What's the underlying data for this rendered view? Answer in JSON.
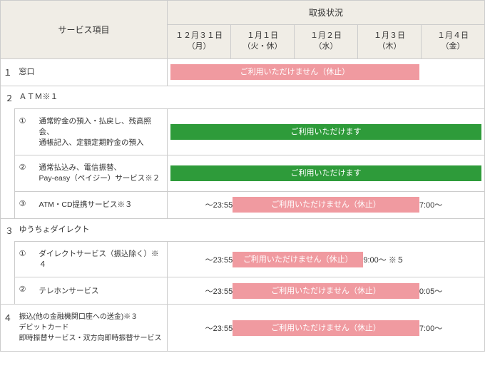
{
  "colors": {
    "header_bg": "#f0ede6",
    "border": "#cccccc",
    "green": "#2e9b3a",
    "pink": "#f09aa0",
    "text": "#333333"
  },
  "header": {
    "service_col": "サービス項目",
    "status_col": "取扱状況",
    "dates": [
      "１２月３１日\n（月）",
      "１月１日\n（火・休）",
      "１月２日\n（水）",
      "１月３日\n（木）",
      "１月４日\n（金）"
    ]
  },
  "labels": {
    "unavailable": "ご利用いただけません（休止）",
    "available": "ご利用いただけます"
  },
  "rows": {
    "r1": {
      "num": "１",
      "label": "窓口",
      "bar": {
        "color": "pink",
        "textKey": "unavailable",
        "left_pct": 0,
        "right_pct": 20
      }
    },
    "r2": {
      "num": "２",
      "label": "ＡＴＭ※１"
    },
    "r2a": {
      "num": "①",
      "label": "通常貯金の預入・払戻し、残高照会、\n通帳記入、定額定期貯金の預入",
      "bar": {
        "color": "green",
        "textKey": "available",
        "left_pct": 0,
        "right_pct": 0
      }
    },
    "r2b": {
      "num": "②",
      "label": "通常払込み、電信振替、\nPay-easy（ペイジー）サービス※２",
      "bar": {
        "color": "green",
        "textKey": "available",
        "left_pct": 0,
        "right_pct": 0
      }
    },
    "r2c": {
      "num": "③",
      "label": "ATM・CD提携サービス※３",
      "time_l": "〜23:55",
      "time_r": "7:00〜",
      "bar": {
        "color": "pink",
        "textKey": "unavailable",
        "left_pct": 20,
        "right_pct": 20
      }
    },
    "r3": {
      "num": "３",
      "label": "ゆうちょダイレクト"
    },
    "r3a": {
      "num": "①",
      "label": "ダイレクトサービス（振込除く）※４",
      "time_l": "〜23:55",
      "time_r": "9:00〜 ※５",
      "bar": {
        "color": "pink",
        "textKey": "unavailable",
        "left_pct": 20,
        "right_pct": 38
      }
    },
    "r3b": {
      "num": "②",
      "label": "テレホンサービス",
      "time_l": "〜23:55",
      "time_r": "0:05〜",
      "bar": {
        "color": "pink",
        "textKey": "unavailable",
        "left_pct": 20,
        "right_pct": 20
      }
    },
    "r4": {
      "num": "４",
      "label": "振込(他の金融機関口座への送金)※３\nデビットカード\n即時振替サービス・双方向即時振替サービス",
      "time_l": "〜23:55",
      "time_r": "7:00〜",
      "bar": {
        "color": "pink",
        "textKey": "unavailable",
        "left_pct": 20,
        "right_pct": 20
      }
    }
  }
}
